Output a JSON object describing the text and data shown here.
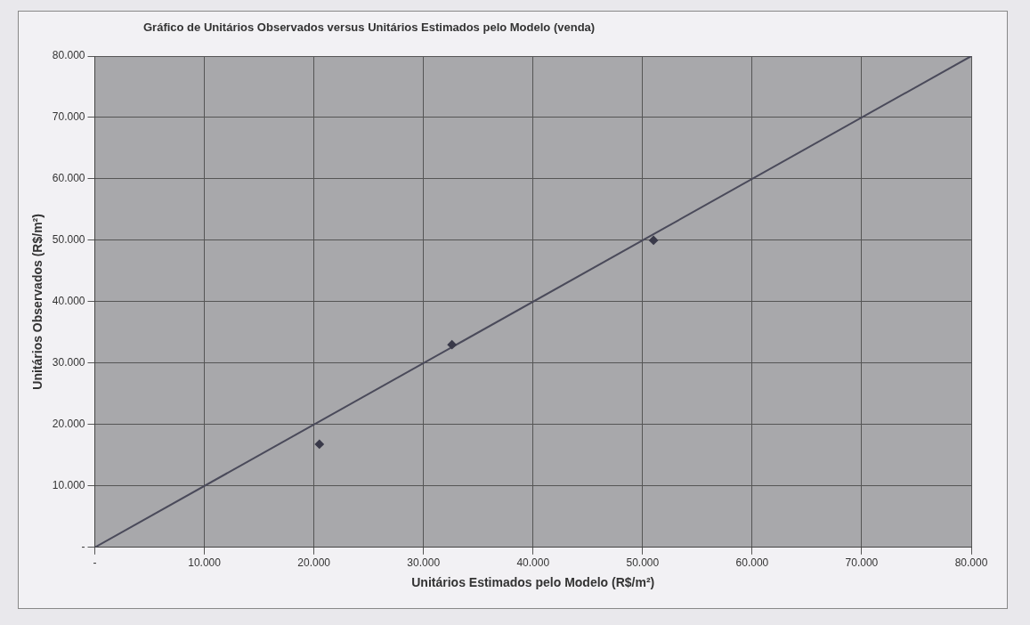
{
  "chart_data": {
    "type": "scatter",
    "title": "Gráfico de Unitários Observados versus Unitários Estimados pelo Modelo (venda)",
    "xlabel": "Unitários Estimados pelo Modelo (R$/m²)",
    "ylabel": "Unitários Observados (R$/m²)",
    "series": [
      {
        "color": "#3a3a4a",
        "x": [
          20500,
          32600,
          51000
        ],
        "values": [
          16800,
          33000,
          50000
        ],
        "marker": "diamond"
      },
      {
        "type": "line",
        "color": "#4a4a5a",
        "x": [
          0,
          80000
        ],
        "values": [
          0,
          80000
        ],
        "marker": "none",
        "line_style": "solid"
      }
    ],
    "xlim": [
      0,
      80000
    ],
    "ylim": [
      0,
      80000
    ],
    "xticks": [
      {
        "value": 0,
        "label": "-"
      },
      {
        "value": 10000,
        "label": "10.000"
      },
      {
        "value": 20000,
        "label": "20.000"
      },
      {
        "value": 30000,
        "label": "30.000"
      },
      {
        "value": 40000,
        "label": "40.000"
      },
      {
        "value": 50000,
        "label": "50.000"
      },
      {
        "value": 60000,
        "label": "60.000"
      },
      {
        "value": 70000,
        "label": "70.000"
      },
      {
        "value": 80000,
        "label": "80.000"
      }
    ],
    "yticks": [
      {
        "value": 0,
        "label": "-"
      },
      {
        "value": 10000,
        "label": "10.000"
      },
      {
        "value": 20000,
        "label": "20.000"
      },
      {
        "value": 30000,
        "label": "30.000"
      },
      {
        "value": 40000,
        "label": "40.000"
      },
      {
        "value": 50000,
        "label": "50.000"
      },
      {
        "value": 60000,
        "label": "60.000"
      },
      {
        "value": 70000,
        "label": "70.000"
      },
      {
        "value": 80000,
        "label": "80.000"
      }
    ],
    "grid": true,
    "legend": false
  }
}
